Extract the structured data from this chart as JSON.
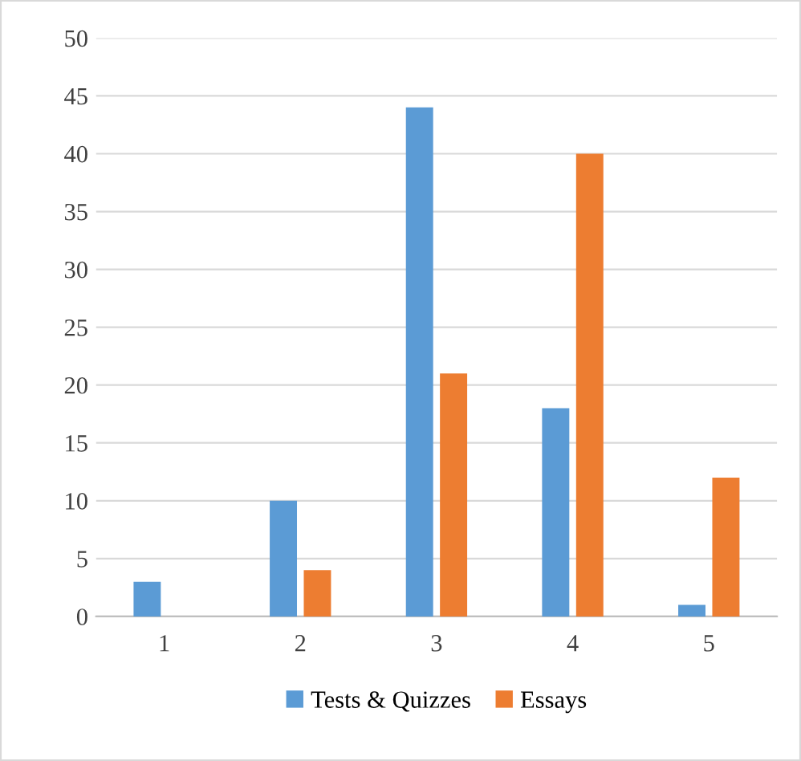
{
  "chart_data": {
    "type": "bar",
    "categories": [
      "1",
      "2",
      "3",
      "4",
      "5"
    ],
    "series": [
      {
        "name": "Tests & Quizzes",
        "color": "#5b9bd5",
        "values": [
          3,
          10,
          44,
          18,
          1
        ]
      },
      {
        "name": "Essays",
        "color": "#ed7d31",
        "values": [
          0,
          4,
          21,
          40,
          12
        ]
      }
    ],
    "ylim": [
      0,
      50
    ],
    "yticks": [
      0,
      5,
      10,
      15,
      20,
      25,
      30,
      35,
      40,
      45,
      50
    ],
    "grid": "y",
    "legend": "bottom"
  }
}
